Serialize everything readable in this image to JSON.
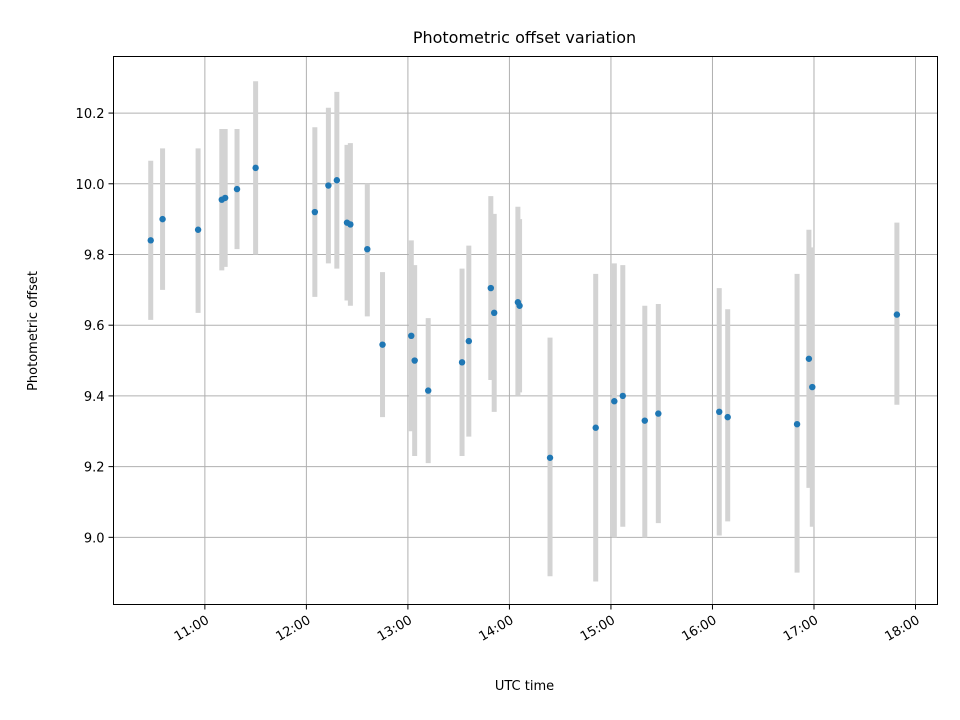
{
  "chart_data": {
    "type": "scatter",
    "title": "Photometric offset variation",
    "xlabel": "UTC time",
    "ylabel": "Photometric offset",
    "x_ticks": [
      "11:00",
      "12:00",
      "13:00",
      "14:00",
      "15:00",
      "16:00",
      "17:00",
      "18:00"
    ],
    "y_ticks": [
      "9.0",
      "9.2",
      "9.4",
      "9.6",
      "9.8",
      "10.0",
      "10.2"
    ],
    "xlim": [
      "10:06",
      "18:13"
    ],
    "ylim": [
      8.81,
      10.36
    ],
    "grid": true,
    "colors": {
      "point": "#1f77b4",
      "errorbar": "#d3d3d3",
      "grid": "#b0b0b0"
    },
    "points": [
      {
        "x": "10:28",
        "y": 9.84,
        "low": 9.615,
        "high": 10.065
      },
      {
        "x": "10:35",
        "y": 9.9,
        "low": 9.7,
        "high": 10.1
      },
      {
        "x": "10:56",
        "y": 9.87,
        "low": 9.635,
        "high": 10.1
      },
      {
        "x": "11:10",
        "y": 9.955,
        "low": 9.755,
        "high": 10.155
      },
      {
        "x": "11:12",
        "y": 9.96,
        "low": 9.765,
        "high": 10.155
      },
      {
        "x": "11:19",
        "y": 9.985,
        "low": 9.815,
        "high": 10.155
      },
      {
        "x": "11:30",
        "y": 10.045,
        "low": 9.8,
        "high": 10.29
      },
      {
        "x": "12:05",
        "y": 9.92,
        "low": 9.68,
        "high": 10.16
      },
      {
        "x": "12:13",
        "y": 9.995,
        "low": 9.775,
        "high": 10.215
      },
      {
        "x": "12:18",
        "y": 10.01,
        "low": 9.76,
        "high": 10.26
      },
      {
        "x": "12:24",
        "y": 9.89,
        "low": 9.67,
        "high": 10.11
      },
      {
        "x": "12:26",
        "y": 9.885,
        "low": 9.655,
        "high": 10.115
      },
      {
        "x": "12:36",
        "y": 9.815,
        "low": 9.625,
        "high": 10.0
      },
      {
        "x": "12:45",
        "y": 9.545,
        "low": 9.34,
        "high": 9.75
      },
      {
        "x": "13:02",
        "y": 9.57,
        "low": 9.3,
        "high": 9.84
      },
      {
        "x": "13:04",
        "y": 9.5,
        "low": 9.23,
        "high": 9.77
      },
      {
        "x": "13:12",
        "y": 9.415,
        "low": 9.21,
        "high": 9.62
      },
      {
        "x": "13:32",
        "y": 9.495,
        "low": 9.23,
        "high": 9.76
      },
      {
        "x": "13:36",
        "y": 9.555,
        "low": 9.285,
        "high": 9.825
      },
      {
        "x": "13:49",
        "y": 9.705,
        "low": 9.445,
        "high": 9.965
      },
      {
        "x": "13:51",
        "y": 9.635,
        "low": 9.355,
        "high": 9.915
      },
      {
        "x": "14:05",
        "y": 9.665,
        "low": 9.4,
        "high": 9.935
      },
      {
        "x": "14:06",
        "y": 9.655,
        "low": 9.41,
        "high": 9.9
      },
      {
        "x": "14:24",
        "y": 9.225,
        "low": 8.89,
        "high": 9.565
      },
      {
        "x": "14:51",
        "y": 9.31,
        "low": 8.875,
        "high": 9.745
      },
      {
        "x": "15:02",
        "y": 9.385,
        "low": 9.0,
        "high": 9.775
      },
      {
        "x": "15:07",
        "y": 9.4,
        "low": 9.03,
        "high": 9.77
      },
      {
        "x": "15:20",
        "y": 9.33,
        "low": 9.0,
        "high": 9.655
      },
      {
        "x": "15:28",
        "y": 9.35,
        "low": 9.04,
        "high": 9.66
      },
      {
        "x": "16:04",
        "y": 9.355,
        "low": 9.005,
        "high": 9.705
      },
      {
        "x": "16:09",
        "y": 9.34,
        "low": 9.045,
        "high": 9.645
      },
      {
        "x": "16:50",
        "y": 9.32,
        "low": 8.9,
        "high": 9.745
      },
      {
        "x": "16:57",
        "y": 9.505,
        "low": 9.14,
        "high": 9.87
      },
      {
        "x": "16:59",
        "y": 9.425,
        "low": 9.03,
        "high": 9.82
      },
      {
        "x": "17:49",
        "y": 9.63,
        "low": 9.375,
        "high": 9.89
      }
    ]
  }
}
